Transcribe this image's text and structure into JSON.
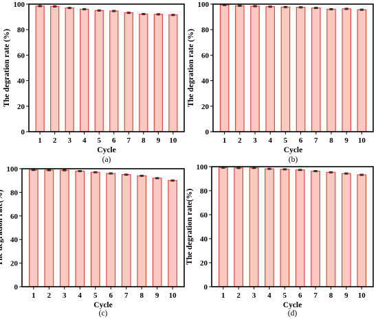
{
  "colors": {
    "bar_fill": "#fcc9c2",
    "bar_stroke": "#e0483f",
    "error_bar": "#222222",
    "axis": "#000000"
  },
  "chart_data": [
    {
      "type": "bar",
      "caption": "(a)",
      "xlabel": "Cycle",
      "ylabel": "The degration rate (%)",
      "ylim": [
        0,
        100
      ],
      "yticks": [
        0,
        20,
        40,
        60,
        80,
        100
      ],
      "categories": [
        "1",
        "2",
        "3",
        "4",
        "5",
        "6",
        "7",
        "8",
        "9",
        "10"
      ],
      "values": [
        98.5,
        98.2,
        97.0,
        96.0,
        95.0,
        94.6,
        93.2,
        92.2,
        92.0,
        91.5
      ],
      "errors": [
        0.5,
        0.5,
        0.5,
        0.5,
        0.5,
        0.5,
        0.5,
        0.5,
        0.5,
        0.5
      ]
    },
    {
      "type": "bar",
      "caption": "(b)",
      "xlabel": "Cycle",
      "ylabel": "The degration rate (%)",
      "ylim": [
        0,
        100
      ],
      "yticks": [
        0,
        20,
        40,
        60,
        80,
        100
      ],
      "categories": [
        "1",
        "2",
        "3",
        "4",
        "5",
        "6",
        "7",
        "8",
        "9",
        "10"
      ],
      "values": [
        99.3,
        98.7,
        98.4,
        98.0,
        97.7,
        97.5,
        97.0,
        96.0,
        96.3,
        95.6
      ],
      "errors": [
        0.5,
        0.5,
        0.5,
        0.5,
        0.5,
        0.5,
        0.5,
        0.5,
        0.5,
        0.5
      ]
    },
    {
      "type": "bar",
      "caption": "(c)",
      "xlabel": "Cycle",
      "ylabel": "The degration rate(%)",
      "ylim": [
        0,
        100
      ],
      "yticks": [
        0,
        20,
        40,
        60,
        80,
        100
      ],
      "categories": [
        "1",
        "2",
        "3",
        "4",
        "5",
        "6",
        "7",
        "8",
        "9",
        "10"
      ],
      "values": [
        99.0,
        98.8,
        98.7,
        98.0,
        97.0,
        96.0,
        95.0,
        94.0,
        92.0,
        90.0
      ],
      "errors": [
        0.5,
        0.5,
        0.5,
        0.5,
        0.5,
        0.5,
        0.5,
        0.5,
        0.5,
        0.5
      ]
    },
    {
      "type": "bar",
      "caption": "(d)",
      "xlabel": "Cycle",
      "ylabel": "The degration rate(%)",
      "ylim": [
        0,
        100
      ],
      "yticks": [
        0,
        20,
        40,
        60,
        80,
        100
      ],
      "categories": [
        "1",
        "2",
        "3",
        "4",
        "5",
        "6",
        "7",
        "8",
        "9",
        "10"
      ],
      "values": [
        99.2,
        99.0,
        99.0,
        98.2,
        97.8,
        97.3,
        96.3,
        95.3,
        94.3,
        93.2
      ],
      "errors": [
        0.5,
        0.5,
        0.5,
        0.5,
        0.5,
        0.5,
        0.5,
        0.5,
        0.5,
        0.5
      ]
    }
  ]
}
